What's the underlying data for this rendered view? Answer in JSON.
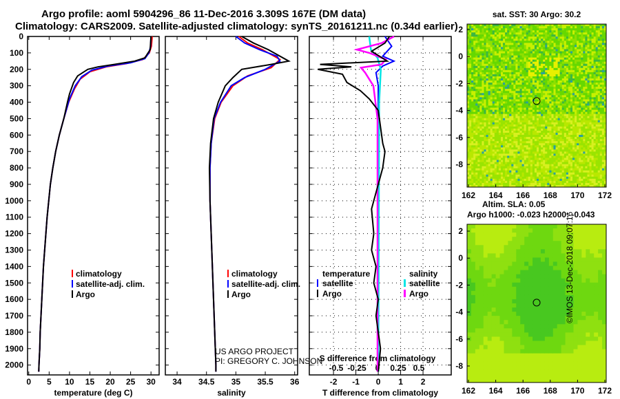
{
  "title_line1": "Argo profile: aoml 5904296_86 11-Dec-2016 3.309S 167E (DM data)",
  "title_line2": "Climatology: CARS2009. Satellite-adjusted climatology: synTS_20161211.nc (0.34d earlier)",
  "credit_line1": "US ARGO PROJECT",
  "credit_line2": "PI: GREGORY C. JOHNSON",
  "stamp": "©IMOS 13-Dec-2018 09:07:16",
  "colors": {
    "climatology": "#ff0000",
    "satellite": "#0000ff",
    "argo": "#000000",
    "sal_satellite": "#00e5e5",
    "sal_argo": "#ff00ff"
  },
  "chart_data": [
    {
      "type": "line",
      "name": "temperature",
      "xlabel": "temperature (deg C)",
      "xlim": [
        -0.3,
        32
      ],
      "ylim": [
        2060,
        0
      ],
      "xticks": [
        "0",
        "5",
        "10",
        "15",
        "20",
        "25",
        "30"
      ],
      "xtickvals": [
        0,
        5,
        10,
        15,
        20,
        25,
        30
      ],
      "yticks": [
        "0",
        "100",
        "200",
        "300",
        "400",
        "500",
        "600",
        "700",
        "800",
        "900",
        "1000",
        "1100",
        "1200",
        "1300",
        "1400",
        "1500",
        "1600",
        "1700",
        "1800",
        "1900",
        "2000"
      ],
      "legend": [
        "climatology",
        "satellite-adj. clim.",
        "Argo"
      ],
      "series": [
        {
          "name": "climatology",
          "color": "#ff0000",
          "points": [
            [
              30.3,
              0
            ],
            [
              30.1,
              60
            ],
            [
              29.6,
              100
            ],
            [
              28,
              140
            ],
            [
              24,
              165
            ],
            [
              19,
              185
            ],
            [
              15,
              215
            ],
            [
              12.6,
              260
            ],
            [
              11.2,
              320
            ],
            [
              9.8,
              400
            ],
            [
              8.6,
              500
            ],
            [
              7.5,
              600
            ],
            [
              6.6,
              700
            ],
            [
              5.9,
              800
            ],
            [
              5.3,
              900
            ],
            [
              4.9,
              1000
            ],
            [
              4.5,
              1100
            ],
            [
              4.2,
              1200
            ],
            [
              3.9,
              1300
            ],
            [
              3.6,
              1400
            ],
            [
              3.4,
              1500
            ],
            [
              3.2,
              1600
            ],
            [
              3.0,
              1700
            ],
            [
              2.8,
              1800
            ],
            [
              2.7,
              1900
            ],
            [
              2.5,
              2000
            ],
            [
              2.45,
              2040
            ]
          ]
        },
        {
          "name": "satellite-adj. clim.",
          "color": "#0000ff",
          "points": [
            [
              30,
              0
            ],
            [
              29.9,
              60
            ],
            [
              29.5,
              100
            ],
            [
              28.5,
              135
            ],
            [
              25,
              160
            ],
            [
              19.5,
              180
            ],
            [
              15.5,
              205
            ],
            [
              13,
              245
            ],
            [
              11.4,
              300
            ],
            [
              10,
              380
            ],
            [
              8.6,
              500
            ],
            [
              7.5,
              600
            ],
            [
              6.6,
              700
            ],
            [
              5.9,
              800
            ],
            [
              5.3,
              900
            ],
            [
              4.9,
              1000
            ],
            [
              4.5,
              1100
            ],
            [
              4.2,
              1200
            ],
            [
              3.9,
              1300
            ],
            [
              3.6,
              1400
            ],
            [
              3.4,
              1500
            ],
            [
              3.2,
              1600
            ],
            [
              3.0,
              1700
            ],
            [
              2.8,
              1800
            ],
            [
              2.7,
              1900
            ],
            [
              2.5,
              2000
            ],
            [
              2.45,
              2040
            ]
          ]
        },
        {
          "name": "Argo",
          "color": "#000000",
          "points": [
            [
              30,
              0
            ],
            [
              29.8,
              80
            ],
            [
              28.5,
              130
            ],
            [
              26,
              150
            ],
            [
              21,
              170
            ],
            [
              17,
              185
            ],
            [
              14.5,
              200
            ],
            [
              12,
              240
            ],
            [
              11,
              280
            ],
            [
              10,
              350
            ],
            [
              9.5,
              400
            ],
            [
              8.6,
              500
            ],
            [
              7.5,
              600
            ],
            [
              6.6,
              700
            ],
            [
              5.9,
              800
            ],
            [
              5.3,
              900
            ],
            [
              4.9,
              1000
            ],
            [
              4.5,
              1100
            ],
            [
              4.2,
              1200
            ],
            [
              3.9,
              1300
            ],
            [
              3.6,
              1400
            ],
            [
              3.4,
              1500
            ],
            [
              3.2,
              1600
            ],
            [
              3.0,
              1700
            ],
            [
              2.8,
              1800
            ],
            [
              2.7,
              1900
            ],
            [
              2.5,
              2000
            ],
            [
              2.45,
              2040
            ]
          ]
        }
      ]
    },
    {
      "type": "line",
      "name": "salinity",
      "xlabel": "salinity",
      "xlim": [
        33.8,
        36.05
      ],
      "ylim": [
        2060,
        0
      ],
      "xticks": [
        "34",
        "34.5",
        "35",
        "35.5",
        "36"
      ],
      "xtickvals": [
        34,
        34.5,
        35,
        35.5,
        36
      ],
      "legend": [
        "climatology",
        "satellite-adj. clim.",
        "Argo"
      ],
      "series": [
        {
          "name": "climatology",
          "color": "#ff0000",
          "points": [
            [
              35.05,
              0
            ],
            [
              35.2,
              40
            ],
            [
              35.45,
              80
            ],
            [
              35.75,
              140
            ],
            [
              35.6,
              190
            ],
            [
              35.2,
              240
            ],
            [
              34.95,
              300
            ],
            [
              34.75,
              400
            ],
            [
              34.64,
              500
            ],
            [
              34.58,
              650
            ],
            [
              34.56,
              800
            ],
            [
              34.56,
              1000
            ],
            [
              34.58,
              1200
            ],
            [
              34.6,
              1400
            ],
            [
              34.62,
              1600
            ],
            [
              34.64,
              1800
            ],
            [
              34.66,
              2000
            ],
            [
              34.66,
              2040
            ]
          ]
        },
        {
          "name": "satellite-adj. clim.",
          "color": "#0000ff",
          "points": [
            [
              35.0,
              0
            ],
            [
              35.15,
              40
            ],
            [
              35.4,
              80
            ],
            [
              35.7,
              120
            ],
            [
              35.75,
              150
            ],
            [
              35.5,
              200
            ],
            [
              35.15,
              250
            ],
            [
              34.92,
              300
            ],
            [
              34.74,
              400
            ],
            [
              34.63,
              500
            ],
            [
              34.58,
              650
            ],
            [
              34.56,
              800
            ],
            [
              34.56,
              1000
            ],
            [
              34.58,
              1200
            ],
            [
              34.6,
              1400
            ],
            [
              34.62,
              1600
            ],
            [
              34.64,
              1800
            ],
            [
              34.66,
              2000
            ],
            [
              34.66,
              2040
            ]
          ]
        },
        {
          "name": "Argo",
          "color": "#000000",
          "points": [
            [
              35.1,
              0
            ],
            [
              35.3,
              40
            ],
            [
              35.55,
              80
            ],
            [
              35.9,
              150
            ],
            [
              35.6,
              170
            ],
            [
              35.1,
              200
            ],
            [
              34.95,
              250
            ],
            [
              34.82,
              300
            ],
            [
              34.7,
              400
            ],
            [
              34.62,
              500
            ],
            [
              34.57,
              650
            ],
            [
              34.55,
              800
            ],
            [
              34.56,
              1000
            ],
            [
              34.58,
              1200
            ],
            [
              34.6,
              1400
            ],
            [
              34.62,
              1600
            ],
            [
              34.64,
              1800
            ],
            [
              34.66,
              2000
            ],
            [
              34.66,
              2040
            ]
          ]
        }
      ]
    },
    {
      "type": "line",
      "name": "difference",
      "xlabel": "T difference from climatology",
      "x2label": "S difference from climatology",
      "xlim": [
        -3.08,
        3.26
      ],
      "ylim": [
        2060,
        0
      ],
      "xticks": [
        "-2",
        "-1",
        "0",
        "1",
        "2"
      ],
      "xtickvals": [
        -2,
        -1,
        0,
        1,
        2
      ],
      "x2ticks": [
        "-0.5",
        "-0.25",
        "0",
        "0.25",
        "0.5"
      ],
      "x2tickvals": [
        -0.5,
        -0.25,
        0,
        0.25,
        0.5
      ],
      "legend_t": {
        "title": "temperature",
        "items": [
          "satellite",
          "Argo"
        ]
      },
      "legend_s": {
        "title": "salinity",
        "items": [
          "satellite",
          "Argo"
        ]
      },
      "series": [
        {
          "name": "T satellite",
          "color": "#0000ff",
          "axis": "T",
          "points": [
            [
              0.3,
              0
            ],
            [
              0.6,
              60
            ],
            [
              0.2,
              120
            ],
            [
              0.7,
              150
            ],
            [
              0.2,
              180
            ],
            [
              -0.1,
              220
            ],
            [
              0,
              300
            ],
            [
              0,
              2040
            ]
          ]
        },
        {
          "name": "S satellite",
          "color": "#00e5e5",
          "axis": "S",
          "points": [
            [
              -0.1,
              0
            ],
            [
              -0.08,
              80
            ],
            [
              0,
              130
            ],
            [
              0.04,
              200
            ],
            [
              0.02,
              400
            ],
            [
              0.01,
              2040
            ]
          ]
        },
        {
          "name": "S Argo",
          "color": "#ff00ff",
          "axis": "S",
          "points": [
            [
              0.2,
              0
            ],
            [
              0.05,
              40
            ],
            [
              -0.25,
              80
            ],
            [
              -0.1,
              100
            ],
            [
              0.1,
              140
            ],
            [
              0.05,
              170
            ],
            [
              -0.2,
              190
            ],
            [
              -0.15,
              220
            ],
            [
              -0.05,
              300
            ],
            [
              0,
              500
            ],
            [
              0,
              2040
            ]
          ]
        },
        {
          "name": "T Argo",
          "color": "#000000",
          "axis": "T",
          "points": [
            [
              0.5,
              0
            ],
            [
              0.3,
              40
            ],
            [
              -0.3,
              90
            ],
            [
              0.4,
              150
            ],
            [
              -2.6,
              170
            ],
            [
              -1.2,
              185
            ],
            [
              -2.7,
              200
            ],
            [
              -1.6,
              230
            ],
            [
              -1.4,
              280
            ],
            [
              -0.8,
              330
            ],
            [
              -0.4,
              380
            ],
            [
              0,
              450
            ],
            [
              0.1,
              550
            ],
            [
              0.2,
              650
            ],
            [
              0.3,
              700
            ],
            [
              0.2,
              800
            ],
            [
              0,
              900
            ],
            [
              -0.1,
              950
            ],
            [
              -0.3,
              1050
            ],
            [
              -0.2,
              1200
            ],
            [
              -0.3,
              1300
            ],
            [
              -0.1,
              1400
            ],
            [
              -0.2,
              1500
            ],
            [
              0,
              1600
            ],
            [
              -0.1,
              1700
            ],
            [
              0.1,
              1900
            ],
            [
              0,
              2040
            ]
          ]
        }
      ]
    },
    {
      "type": "heatmap",
      "name": "sst map",
      "title": "sat. SST: 30 Argo: 30.2",
      "xticks": [
        "162",
        "164",
        "166",
        "168",
        "170",
        "172"
      ],
      "yticks": [
        "2",
        "0",
        "-2",
        "-4",
        "-6",
        "-8"
      ],
      "marker": [
        167,
        -3.3
      ]
    },
    {
      "type": "heatmap",
      "name": "sla map",
      "title1": "Altim. SLA: 0.05",
      "title2": "Argo h1000: -0.023 h2000: -0.043",
      "xticks": [
        "162",
        "164",
        "166",
        "168",
        "170",
        "172"
      ],
      "yticks": [
        "2",
        "0",
        "-2",
        "-4",
        "-6",
        "-8"
      ],
      "marker": [
        167,
        -3.3
      ]
    }
  ]
}
